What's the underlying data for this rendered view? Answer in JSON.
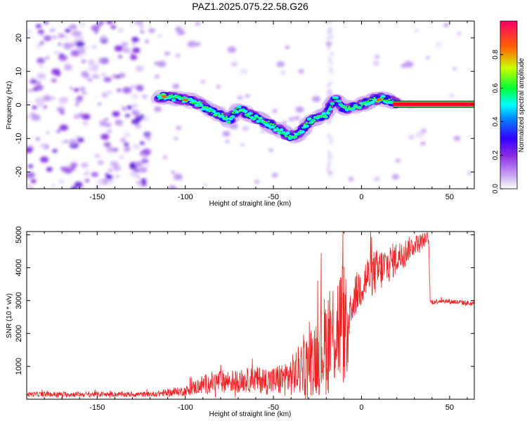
{
  "title": "PAZ1.2025.075.22.58.G26",
  "chart_data": [
    {
      "type": "heatmap",
      "xlabel": "Height of straight line (km)",
      "ylabel": "Frequency (Hz)",
      "xlim": [
        -190,
        64
      ],
      "ylim": [
        -25,
        25
      ],
      "xticks": [
        -150,
        -100,
        -50,
        0,
        50
      ],
      "yticks": [
        -20,
        -10,
        0,
        10,
        20
      ],
      "colorbar": {
        "label": "Normalized spectral amplitude",
        "range": [
          0,
          1
        ],
        "ticks": [
          "0.0",
          "0.2",
          "0.4",
          "0.6",
          "0.8"
        ],
        "colormap": [
          "#ffffff",
          "#d8b8f8",
          "#8a2be2",
          "#3300ff",
          "#00ffff",
          "#00ff33",
          "#ccff00",
          "#ff6600",
          "#ff0066"
        ]
      },
      "ridge": {
        "x": [
          -115,
          -110,
          -105,
          -100,
          -95,
          -90,
          -85,
          -80,
          -75,
          -70,
          -65,
          -60,
          -55,
          -50,
          -45,
          -40,
          -35,
          -30,
          -25,
          -20,
          -15,
          -10,
          -5,
          0,
          5,
          10,
          15,
          20,
          30,
          40,
          50,
          64
        ],
        "y": [
          2.5,
          2.5,
          2.0,
          1.5,
          1.0,
          -0.5,
          -2.0,
          -3.0,
          -4.5,
          -1.0,
          -2.5,
          -4.0,
          -5.0,
          -6.5,
          -8.0,
          -9.5,
          -8.5,
          -5.0,
          -4.0,
          -3.0,
          2.0,
          -1.0,
          -0.5,
          0.0,
          1.0,
          2.0,
          1.5,
          0.2,
          0.2,
          0.2,
          0.2,
          0.2
        ]
      }
    },
    {
      "type": "line",
      "xlabel": "Height of straight line (km)",
      "ylabel": "SNR (10 * v/v)",
      "xlim": [
        -190,
        64
      ],
      "ylim": [
        0,
        5100
      ],
      "xticks": [
        -150,
        -100,
        -50,
        0,
        50
      ],
      "yticks": [
        1000,
        2000,
        3000,
        4000,
        5000
      ],
      "color": "#ee2222",
      "envelope": {
        "x": [
          -190,
          -120,
          -100,
          -90,
          -80,
          -70,
          -60,
          -50,
          -40,
          -30,
          -25,
          -20,
          -15,
          -10,
          -8,
          -5,
          0,
          5,
          10,
          20,
          30,
          38,
          39,
          45,
          55,
          64
        ],
        "mean": [
          150,
          150,
          250,
          450,
          550,
          550,
          600,
          550,
          700,
          1100,
          1400,
          1700,
          2100,
          2400,
          1600,
          3000,
          3500,
          3800,
          3900,
          4300,
          4700,
          4900,
          2950,
          3000,
          2950,
          2900
        ],
        "amp": [
          80,
          80,
          150,
          300,
          350,
          350,
          400,
          450,
          600,
          1000,
          1300,
          1600,
          1800,
          2000,
          1000,
          600,
          700,
          700,
          700,
          500,
          300,
          200,
          80,
          80,
          80,
          80
        ]
      }
    }
  ]
}
